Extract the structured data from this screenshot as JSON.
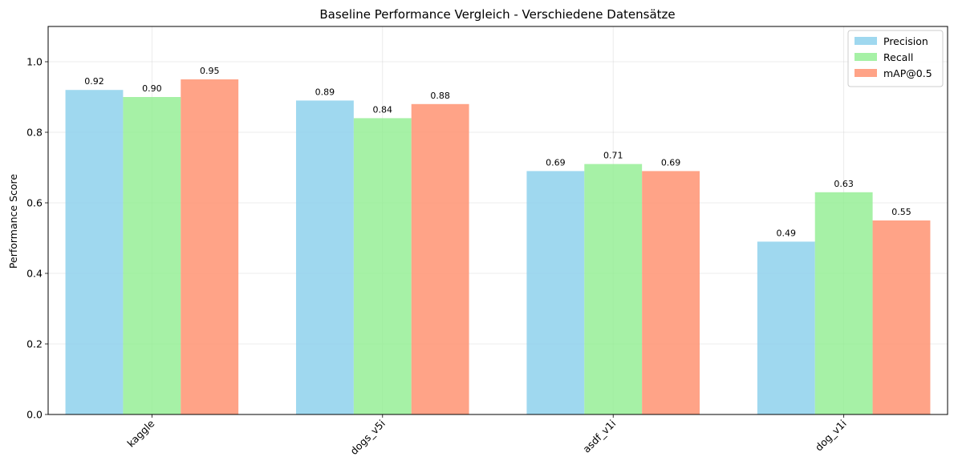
{
  "chart_data": {
    "type": "bar",
    "title": "Baseline Performance Vergleich - Verschiedene Datensätze",
    "xlabel": "",
    "ylabel": "Performance Score",
    "categories": [
      "kaggle",
      "dogs_v5i",
      "asdf_v1i",
      "dog_v1i"
    ],
    "series": [
      {
        "name": "Precision",
        "color": "#87ceeb",
        "values": [
          0.92,
          0.89,
          0.69,
          0.49
        ]
      },
      {
        "name": "Recall",
        "color": "#90ee90",
        "values": [
          0.9,
          0.84,
          0.71,
          0.63
        ]
      },
      {
        "name": "mAP@0.5",
        "color": "#ff8c69",
        "values": [
          0.95,
          0.88,
          0.69,
          0.55
        ]
      }
    ],
    "data_labels": [
      [
        "0.92",
        "0.89",
        "0.69",
        "0.49"
      ],
      [
        "0.90",
        "0.84",
        "0.71",
        "0.63"
      ],
      [
        "0.95",
        "0.88",
        "0.69",
        "0.55"
      ]
    ],
    "ylim": [
      0,
      1.1
    ],
    "yticks": [
      "0.0",
      "0.2",
      "0.4",
      "0.6",
      "0.8",
      "1.0"
    ],
    "grid": true,
    "legend_position": "top-right",
    "xtick_rotation": "45 degrees"
  }
}
